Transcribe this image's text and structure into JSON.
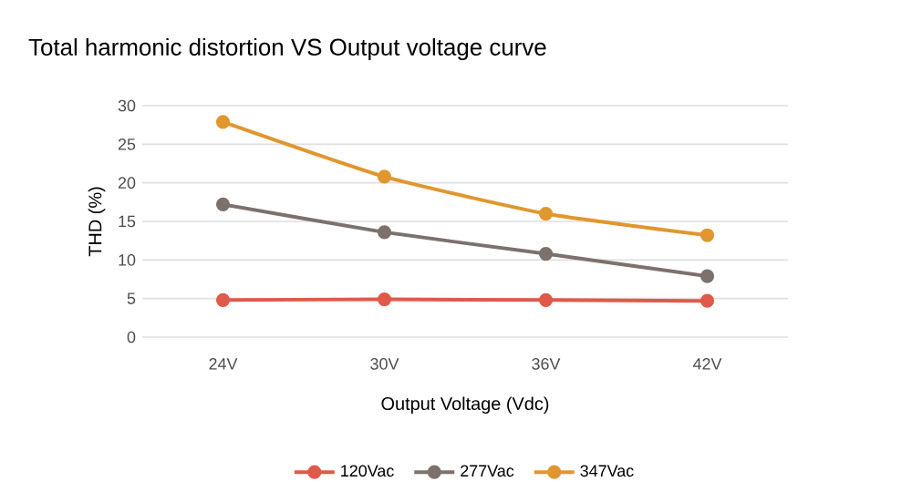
{
  "chart_data": {
    "type": "line",
    "title": "Total harmonic distortion VS Output voltage curve",
    "xlabel": "Output Voltage (Vdc)",
    "ylabel": "THD (%)",
    "categories": [
      "24V",
      "30V",
      "36V",
      "42V"
    ],
    "series": [
      {
        "name": "120Vac",
        "color": "#df5a4a",
        "values": [
          4.8,
          4.9,
          4.8,
          4.7
        ]
      },
      {
        "name": "277Vac",
        "color": "#7d716c",
        "values": [
          17.2,
          13.6,
          10.8,
          7.9
        ]
      },
      {
        "name": "347Vac",
        "color": "#e0972f",
        "values": [
          27.9,
          20.8,
          16.0,
          13.2
        ]
      }
    ],
    "ylim": [
      0,
      30
    ],
    "yticks": [
      0,
      5,
      10,
      15,
      20,
      25,
      30
    ],
    "grid": "y",
    "legend": "bottom",
    "marker": "circle",
    "line_style": "solid"
  }
}
